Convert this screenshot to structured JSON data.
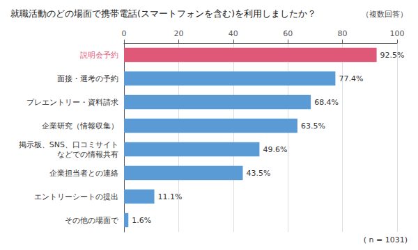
{
  "chart_data": {
    "type": "bar",
    "orientation": "horizontal",
    "title": "就職活動のどの場面で携帯電話(スマートフォンを含む)を利用しましたか？",
    "subtitle": "（複数回答）",
    "annotations": [
      "( n = 1031)"
    ],
    "categories": [
      "説明会予約",
      "面接・選考の予約",
      "プレエントリー・資料請求",
      "企業研究（情報収集）",
      "掲示板、SNS、口コミサイト\nなどでの情報共有",
      "企業担当者との連絡",
      "エントリーシートの提出",
      "その他の場面で"
    ],
    "values": [
      92.5,
      77.4,
      68.4,
      63.5,
      49.6,
      43.5,
      11.1,
      1.6
    ],
    "value_labels": [
      "92.5%",
      "77.4%",
      "68.4%",
      "63.5%",
      "49.6%",
      "43.5%",
      "11.1%",
      "1.6%"
    ],
    "colors": [
      "#e05878",
      "#5b9bd5",
      "#5b9bd5",
      "#5b9bd5",
      "#5b9bd5",
      "#5b9bd5",
      "#5b9bd5",
      "#5b9bd5"
    ],
    "xlim": [
      0,
      100
    ],
    "xticks": [
      0,
      20,
      40,
      60,
      80,
      100
    ],
    "grid": true,
    "data_labels": true
  }
}
